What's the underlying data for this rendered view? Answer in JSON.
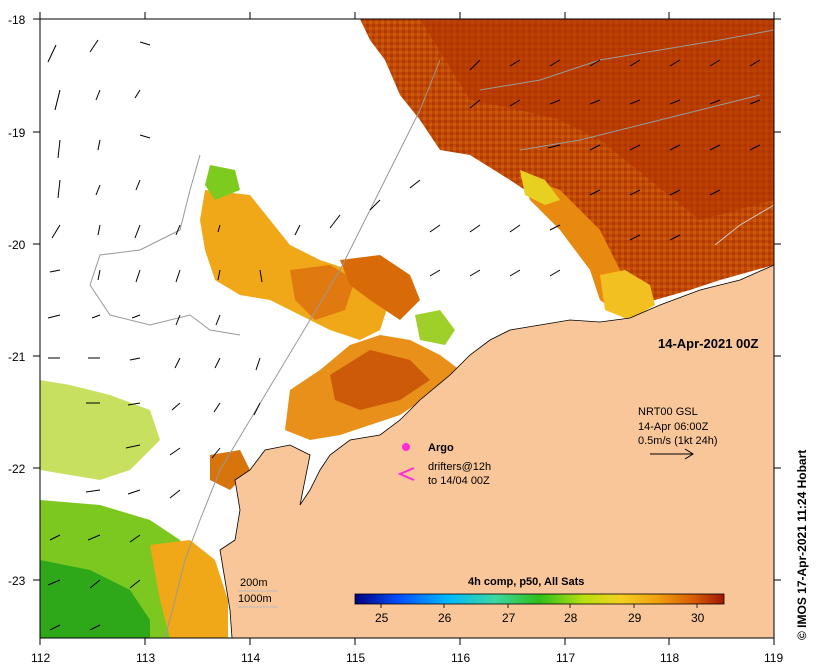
{
  "map": {
    "lon_ticks": [
      "112",
      "113",
      "114",
      "115",
      "116",
      "117",
      "118",
      "119"
    ],
    "lat_ticks": [
      "-18",
      "-19",
      "-20",
      "-21",
      "-22",
      "-23"
    ],
    "date_label": "14-Apr-2021 00Z",
    "current_legend": {
      "line1": "NRT00 GSL",
      "line2": "14-Apr 06:00Z",
      "line3": "0.5m/s (1kt 24h)"
    },
    "argo_label": "Argo",
    "drifters_label_1": "drifters@12h",
    "drifters_label_2": "to 14/04 00Z",
    "isobath_200": "200m",
    "isobath_1000": "1000m",
    "colorbar": {
      "title": "4h comp, p50, All Sats",
      "ticks": [
        "25",
        "26",
        "27",
        "28",
        "29",
        "30"
      ]
    },
    "credit": "© IMOS 17-Apr-2021 11:24 Hobart",
    "colors": {
      "land": "#f9c69a",
      "sst_hot": "#b83a00",
      "sst_warm": "#e07a10",
      "sst_mid": "#f2b21a",
      "sst_cool": "#3fb520",
      "no_data": "#ffffff",
      "drifters": "#ff2bd6",
      "argo": "#ff2bd6"
    }
  }
}
